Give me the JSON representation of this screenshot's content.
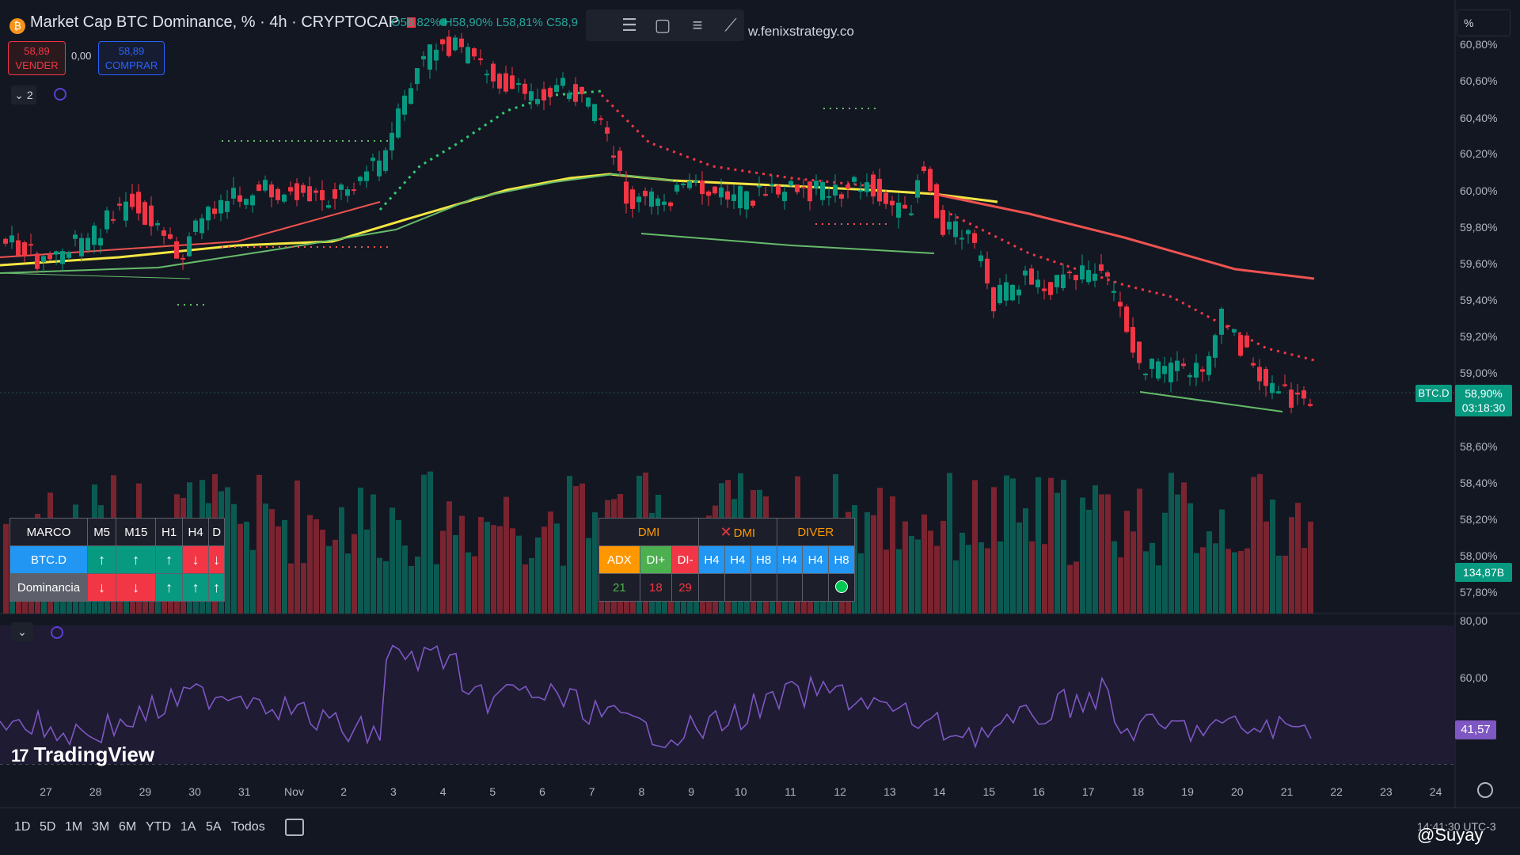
{
  "header": {
    "coin_icon": "bitcoin-icon",
    "title": "Market Cap BTC Dominance, % · 4h · CRYPTOCAP",
    "ohlc": "O58,82% H58,90% L58,81% C58,9",
    "flag_color": "#f23645"
  },
  "trade": {
    "sell_price": "58,89",
    "sell_label": "VENDER",
    "spread": "0,00",
    "buy_price": "58,89",
    "buy_label": "COMPRAR"
  },
  "drawing_toolbar": {
    "icons": [
      "trend-lines-icon",
      "rectangle-icon",
      "menu-icon",
      "ruler-icon"
    ]
  },
  "overlay_text": "w.fenixstrategy.co",
  "indicator_count": "2",
  "scale_mode": "%",
  "price_axis": {
    "labels": [
      "60,80%",
      "60,60%",
      "60,40%",
      "60,20%",
      "60,00%",
      "59,80%",
      "59,60%",
      "59,40%",
      "59,20%",
      "59,00%",
      "58,60%",
      "58,40%",
      "58,20%",
      "58,00%",
      "57,80%"
    ],
    "current_symbol": "BTC.D",
    "current_price": "58,90%",
    "countdown": "03:18:30",
    "volume_value": "134,87B"
  },
  "rsi_axis": {
    "labels": [
      "80,00",
      "60,00"
    ],
    "current": "41,57"
  },
  "time_axis": {
    "labels": [
      "27",
      "28",
      "29",
      "30",
      "31",
      "Nov",
      "2",
      "3",
      "4",
      "5",
      "6",
      "7",
      "8",
      "9",
      "10",
      "11",
      "12",
      "13",
      "14",
      "15",
      "16",
      "17",
      "18",
      "19",
      "20",
      "21",
      "22",
      "23",
      "24"
    ]
  },
  "marco_table": {
    "headers": [
      "MARCO",
      "M5",
      "M15",
      "H1",
      "H4",
      "D"
    ],
    "row1_label": "BTC.D",
    "row1": [
      "↑",
      "↑",
      "↑",
      "↓",
      "↓"
    ],
    "row2_label": "Dominancia",
    "row2": [
      "↓",
      "↓",
      "↑",
      "↑",
      "↑"
    ]
  },
  "dmi_table": {
    "headers": [
      "DMI",
      "DMI",
      "DIVER"
    ],
    "sub": [
      "ADX",
      "DI+",
      "DI-",
      "H4",
      "H4",
      "H8",
      "H4",
      "H4",
      "H8"
    ],
    "values": [
      "21",
      "18",
      "29"
    ]
  },
  "brand": "TradingView",
  "bottom_bar": {
    "ranges": [
      "1D",
      "5D",
      "1M",
      "3M",
      "6M",
      "YTD",
      "1A",
      "5A",
      "Todos"
    ],
    "time": "14:41:30 UTC-3",
    "watermark": "@Suyay"
  },
  "colors": {
    "background": "#131722",
    "up": "#089981",
    "down": "#f23645",
    "ema_yellow": "#f5e642",
    "ema_green": "#66bb6a",
    "ema_red": "#ef5350",
    "rsi": "#7e57c2"
  }
}
